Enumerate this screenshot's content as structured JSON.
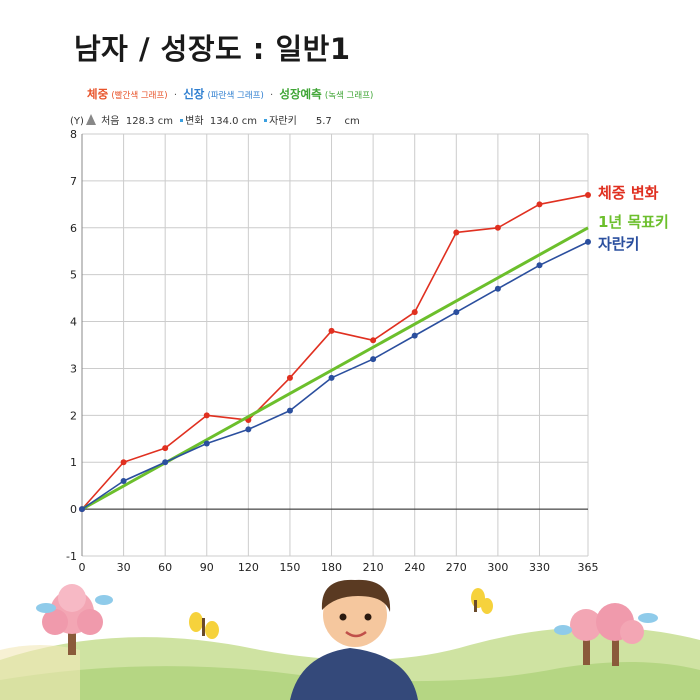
{
  "title": "남자 / 성장도 : 일반1",
  "legend": {
    "weight_label": "체중",
    "weight_note": "(빨간색 그래프)",
    "height_label": "신장",
    "height_note": "(파란색 그래프)",
    "predict_label": "성장예측",
    "predict_note": "(녹색 그래프)",
    "separator": "·"
  },
  "info": {
    "axis_marker": "(Y)",
    "start_label": "처음",
    "start_value": "128.3",
    "start_unit": "cm",
    "change_label": "변화",
    "change_value": "134.0",
    "change_unit": "cm",
    "grown_label": "자란키",
    "grown_value": "5.7",
    "grown_unit": "cm"
  },
  "colors": {
    "weight": "#e03020",
    "height": "#2b4f9e",
    "target": "#6cbf2c",
    "grid": "#cccccc"
  },
  "chart_data": {
    "type": "line",
    "x": [
      0,
      30,
      60,
      90,
      120,
      150,
      180,
      210,
      240,
      270,
      300,
      330,
      365
    ],
    "xticks": [
      0,
      30,
      60,
      90,
      120,
      150,
      180,
      210,
      240,
      270,
      300,
      330,
      365
    ],
    "yticks": [
      -1,
      0,
      1,
      2,
      3,
      4,
      5,
      6,
      7,
      8
    ],
    "xlim": [
      0,
      365
    ],
    "ylim": [
      -1,
      8
    ],
    "grid": true,
    "series": [
      {
        "name": "체중 변화",
        "key": "weight",
        "values": [
          0,
          1.0,
          1.3,
          2.0,
          1.9,
          2.8,
          3.8,
          3.6,
          4.2,
          5.9,
          6.0,
          6.5,
          6.7
        ]
      },
      {
        "name": "1년 목표키",
        "key": "target",
        "line_only": true,
        "x": [
          0,
          365
        ],
        "values": [
          0,
          6.0
        ]
      },
      {
        "name": "자란키",
        "key": "height",
        "values": [
          0,
          0.6,
          1.0,
          1.4,
          1.7,
          2.1,
          2.8,
          3.2,
          3.7,
          4.2,
          4.7,
          5.2,
          5.7
        ]
      }
    ]
  }
}
